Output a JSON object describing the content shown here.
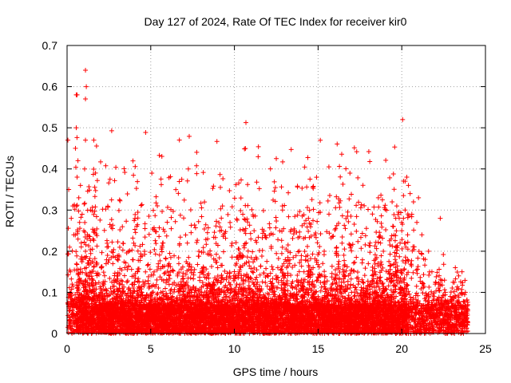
{
  "chart_data": {
    "type": "scatter",
    "title": "Day 127 of 2024, Rate Of TEC Index for receiver kir0",
    "xlabel": "GPS time / hours",
    "ylabel": "ROTI / TECUs",
    "xlim": [
      0,
      25
    ],
    "ylim": [
      0,
      0.7
    ],
    "xticks": [
      "0",
      "5",
      "10",
      "15",
      "20",
      "25"
    ],
    "yticks": [
      "0",
      "0.1",
      "0.2",
      "0.3",
      "0.4",
      "0.5",
      "0.6",
      "0.7"
    ],
    "grid": true,
    "marker": "+",
    "color": "#ff0000",
    "series": [
      {
        "name": "ROTI",
        "x": [
          0.05,
          0.1,
          0.15,
          0.2,
          0.25,
          0.3,
          0.35,
          0.4,
          0.5,
          0.55,
          0.6,
          0.65,
          0.7,
          0.75,
          0.8,
          0.85,
          0.9,
          0.95,
          1.0,
          1.05,
          1.1,
          1.15,
          1.2,
          1.25,
          1.3,
          1.4,
          1.5,
          1.6,
          1.7,
          1.8,
          1.9,
          2.0,
          2.2,
          2.4,
          2.6,
          2.8,
          3.0,
          3.1,
          3.3,
          3.5,
          3.8,
          4.0,
          4.3,
          4.6,
          5.0,
          5.3,
          5.6,
          5.9,
          6.1,
          6.3,
          6.6,
          6.9,
          7.2,
          7.5,
          7.7,
          8.0,
          8.4,
          8.6,
          8.8,
          9.0,
          9.3,
          9.6,
          10.0,
          10.3,
          10.5,
          10.6,
          10.7,
          10.9,
          11.2,
          11.6,
          12.0,
          12.4,
          12.8,
          13.2,
          13.3,
          13.6,
          14.0,
          14.3,
          14.7,
          15.0,
          15.4,
          15.8,
          16.2,
          16.6,
          17.0,
          17.4,
          17.8,
          18.0,
          18.1,
          18.4,
          18.6,
          18.9,
          19.2,
          19.5,
          19.7,
          19.9,
          20.0,
          20.1,
          20.2,
          20.3,
          20.4,
          20.5,
          20.6,
          20.7,
          20.9,
          21.0,
          21.2,
          21.4,
          21.6,
          21.8,
          22.0,
          22.3,
          22.6,
          22.9,
          23.2,
          23.4,
          23.6,
          23.8,
          23.95,
          1.1,
          1.15,
          1.1,
          0.55,
          0.6,
          1.1,
          20.05,
          20.2,
          20.35
        ],
        "y": [
          0.47,
          0.35,
          0.21,
          0.15,
          0.28,
          0.12,
          0.31,
          0.24,
          0.45,
          0.5,
          0.38,
          0.42,
          0.33,
          0.27,
          0.36,
          0.22,
          0.29,
          0.18,
          0.25,
          0.4,
          0.2,
          0.16,
          0.23,
          0.14,
          0.12,
          0.3,
          0.13,
          0.47,
          0.39,
          0.08,
          0.09,
          0.1,
          0.12,
          0.09,
          0.11,
          0.13,
          0.18,
          0.19,
          0.1,
          0.08,
          0.09,
          0.14,
          0.11,
          0.12,
          0.08,
          0.07,
          0.1,
          0.09,
          0.17,
          0.12,
          0.14,
          0.08,
          0.17,
          0.09,
          0.11,
          0.07,
          0.23,
          0.19,
          0.12,
          0.16,
          0.06,
          0.08,
          0.07,
          0.15,
          0.29,
          0.25,
          0.22,
          0.1,
          0.18,
          0.08,
          0.14,
          0.09,
          0.11,
          0.2,
          0.17,
          0.08,
          0.13,
          0.1,
          0.16,
          0.09,
          0.12,
          0.11,
          0.19,
          0.08,
          0.1,
          0.12,
          0.09,
          0.17,
          0.22,
          0.15,
          0.33,
          0.2,
          0.15,
          0.26,
          0.31,
          0.22,
          0.25,
          0.28,
          0.3,
          0.38,
          0.36,
          0.34,
          0.29,
          0.32,
          0.27,
          0.33,
          0.24,
          0.18,
          0.2,
          0.15,
          0.12,
          0.28,
          0.1,
          0.09,
          0.16,
          0.14,
          0.15,
          0.1,
          0.07,
          0.64,
          0.6,
          0.57,
          0.58,
          0.58,
          0.47,
          0.52,
          0.37,
          0.24
        ],
        "baseline_band": {
          "min": 0.0,
          "max": 0.07
        }
      }
    ]
  }
}
